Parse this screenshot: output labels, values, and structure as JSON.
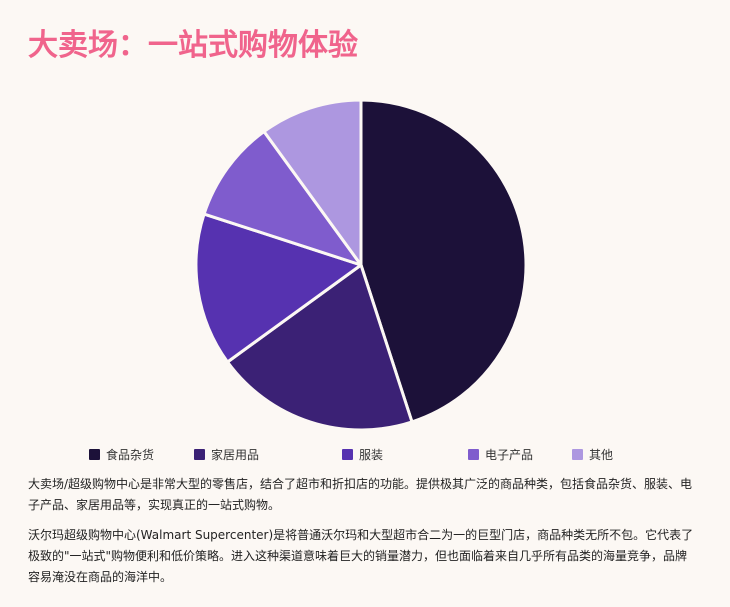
{
  "title": "大卖场：一站式购物体验",
  "chart_data": {
    "type": "pie",
    "title": "大卖场：一站式购物体验",
    "categories": [
      "食品杂货",
      "家居用品",
      "服装",
      "电子产品",
      "其他"
    ],
    "values": [
      45,
      20,
      15,
      10,
      10
    ],
    "colors": [
      "#1c1139",
      "#3b2175",
      "#5632b0",
      "#7f5ccd",
      "#ad97e0"
    ],
    "start_angle": "12 o'clock, clockwise",
    "legend_position": "bottom"
  },
  "legend": {
    "items": [
      {
        "label": "食品杂货",
        "color": "#1c1139"
      },
      {
        "label": "家居用品",
        "color": "#3b2175"
      },
      {
        "label": "服装",
        "color": "#5632b0"
      },
      {
        "label": "电子产品",
        "color": "#7f5ccd"
      },
      {
        "label": "其他",
        "color": "#ad97e0"
      }
    ]
  },
  "paragraphs": [
    "大卖场/超级购物中心是非常大型的零售店，结合了超市和折扣店的功能。提供极其广泛的商品种类，包括食品杂货、服装、电子产品、家居用品等，实现真正的一站式购物。",
    "沃尔玛超级购物中心(Walmart Supercenter)是将普通沃尔玛和大型超市合二为一的巨型门店，商品种类无所不包。它代表了极致的\"一站式\"购物便利和低价策略。进入这种渠道意味着巨大的销量潜力，但也面临着来自几乎所有品类的海量竞争，品牌容易淹没在商品的海洋中。"
  ]
}
